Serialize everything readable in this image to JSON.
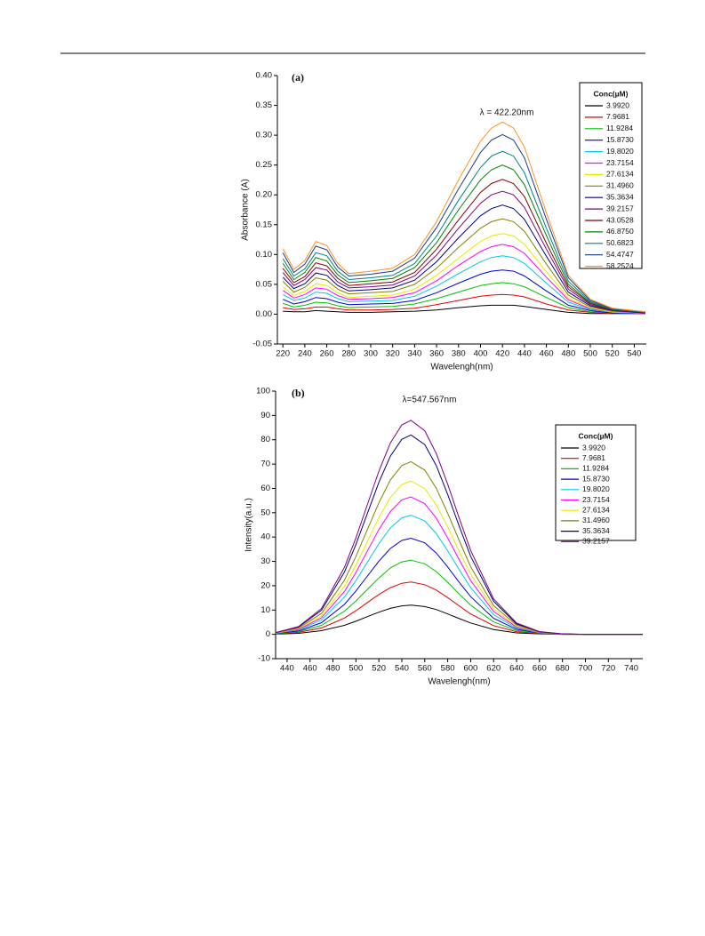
{
  "chart_data": [
    {
      "type": "line",
      "panel_label": "(a)",
      "annotation": "λ = 422.20nm",
      "xlabel": "Wavelengh(nm)",
      "ylabel": "Absorbance (A)",
      "legend_title": "Conc(µM)",
      "xlim": [
        215,
        551
      ],
      "ylim": [
        -0.05,
        0.4
      ],
      "xticks": [
        220,
        240,
        260,
        280,
        300,
        320,
        340,
        360,
        380,
        400,
        420,
        440,
        460,
        480,
        500,
        520,
        540
      ],
      "yticks": [
        -0.05,
        {
          "value": 0,
          "label": "0.00"
        },
        0.05,
        {
          "value": 0.1,
          "label": "0.10"
        },
        0.15,
        {
          "value": 0.2,
          "label": "0.20"
        },
        0.25,
        {
          "value": 0.3,
          "label": "0.30"
        },
        0.35,
        {
          "value": 0.4,
          "label": "0.40"
        }
      ],
      "x": [
        220,
        230,
        240,
        250,
        260,
        270,
        280,
        300,
        320,
        340,
        360,
        380,
        400,
        410,
        420,
        430,
        440,
        460,
        480,
        500,
        520,
        550
      ],
      "series": [
        {
          "name": "3.9920",
          "color": "#000000",
          "values": [
            0.005,
            0.004,
            0.004,
            0.006,
            0.005,
            0.004,
            0.003,
            0.003,
            0.004,
            0.005,
            0.007,
            0.011,
            0.014,
            0.015,
            0.015,
            0.015,
            0.013,
            0.008,
            0.003,
            0.001,
            0.001,
            0.001
          ]
        },
        {
          "name": "7.9681",
          "color": "#e00000",
          "values": [
            0.011,
            0.008,
            0.009,
            0.012,
            0.012,
            0.009,
            0.007,
            0.007,
            0.008,
            0.01,
            0.016,
            0.023,
            0.03,
            0.032,
            0.033,
            0.032,
            0.029,
            0.017,
            0.007,
            0.003,
            0.001,
            0.001
          ]
        },
        {
          "name": "11.9284",
          "color": "#00c000",
          "values": [
            0.018,
            0.012,
            0.015,
            0.02,
            0.019,
            0.014,
            0.011,
            0.012,
            0.013,
            0.017,
            0.026,
            0.037,
            0.048,
            0.051,
            0.053,
            0.051,
            0.046,
            0.028,
            0.011,
            0.004,
            0.002,
            0.001
          ]
        },
        {
          "name": "15.8730",
          "color": "#0000d0",
          "values": [
            0.025,
            0.017,
            0.021,
            0.028,
            0.026,
            0.02,
            0.016,
            0.017,
            0.018,
            0.023,
            0.036,
            0.052,
            0.067,
            0.072,
            0.074,
            0.072,
            0.064,
            0.039,
            0.015,
            0.006,
            0.002,
            0.001
          ]
        },
        {
          "name": "19.8020",
          "color": "#00c8e8",
          "values": [
            0.033,
            0.023,
            0.027,
            0.037,
            0.035,
            0.026,
            0.021,
            0.022,
            0.023,
            0.03,
            0.047,
            0.068,
            0.088,
            0.095,
            0.098,
            0.095,
            0.085,
            0.052,
            0.02,
            0.008,
            0.003,
            0.001
          ]
        },
        {
          "name": "23.7154",
          "color": "#ff00ff",
          "values": [
            0.04,
            0.027,
            0.033,
            0.044,
            0.042,
            0.031,
            0.025,
            0.026,
            0.028,
            0.036,
            0.056,
            0.082,
            0.105,
            0.113,
            0.117,
            0.113,
            0.102,
            0.062,
            0.024,
            0.009,
            0.004,
            0.001
          ]
        },
        {
          "name": "27.6134",
          "color": "#e8e800",
          "values": [
            0.046,
            0.031,
            0.038,
            0.051,
            0.048,
            0.036,
            0.028,
            0.03,
            0.032,
            0.042,
            0.065,
            0.094,
            0.122,
            0.131,
            0.135,
            0.131,
            0.117,
            0.071,
            0.027,
            0.01,
            0.004,
            0.002
          ]
        },
        {
          "name": "31.4960",
          "color": "#808000",
          "values": [
            0.055,
            0.037,
            0.045,
            0.061,
            0.057,
            0.042,
            0.034,
            0.036,
            0.038,
            0.05,
            0.077,
            0.112,
            0.144,
            0.155,
            0.16,
            0.155,
            0.139,
            0.084,
            0.032,
            0.012,
            0.005,
            0.002
          ]
        },
        {
          "name": "35.3634",
          "color": "#000080",
          "values": [
            0.062,
            0.043,
            0.051,
            0.069,
            0.065,
            0.048,
            0.039,
            0.041,
            0.044,
            0.057,
            0.088,
            0.128,
            0.165,
            0.177,
            0.183,
            0.177,
            0.159,
            0.097,
            0.037,
            0.014,
            0.006,
            0.002
          ]
        },
        {
          "name": "39.2157",
          "color": "#800080",
          "values": [
            0.07,
            0.048,
            0.058,
            0.078,
            0.074,
            0.054,
            0.044,
            0.046,
            0.049,
            0.064,
            0.099,
            0.144,
            0.186,
            0.2,
            0.206,
            0.2,
            0.179,
            0.109,
            0.042,
            0.016,
            0.006,
            0.003
          ]
        },
        {
          "name": "43.0528",
          "color": "#800000",
          "values": [
            0.077,
            0.053,
            0.063,
            0.086,
            0.081,
            0.06,
            0.048,
            0.051,
            0.054,
            0.07,
            0.109,
            0.158,
            0.204,
            0.219,
            0.226,
            0.219,
            0.197,
            0.119,
            0.046,
            0.018,
            0.007,
            0.003
          ]
        },
        {
          "name": "46.8750",
          "color": "#008000",
          "values": [
            0.085,
            0.058,
            0.07,
            0.095,
            0.089,
            0.066,
            0.053,
            0.056,
            0.06,
            0.078,
            0.12,
            0.175,
            0.225,
            0.242,
            0.25,
            0.242,
            0.217,
            0.132,
            0.05,
            0.019,
            0.008,
            0.003
          ]
        },
        {
          "name": "50.6823",
          "color": "#008080",
          "values": [
            0.093,
            0.064,
            0.076,
            0.103,
            0.098,
            0.072,
            0.058,
            0.061,
            0.065,
            0.085,
            0.131,
            0.191,
            0.246,
            0.265,
            0.273,
            0.265,
            0.237,
            0.144,
            0.055,
            0.021,
            0.008,
            0.003
          ]
        },
        {
          "name": "54.4747",
          "color": "#1a3a8a",
          "values": [
            0.103,
            0.07,
            0.084,
            0.114,
            0.108,
            0.079,
            0.064,
            0.067,
            0.072,
            0.094,
            0.145,
            0.21,
            0.271,
            0.292,
            0.301,
            0.292,
            0.262,
            0.159,
            0.061,
            0.023,
            0.009,
            0.004
          ]
        },
        {
          "name": "58.2524",
          "color": "#ff9020",
          "values": [
            0.11,
            0.075,
            0.09,
            0.122,
            0.115,
            0.085,
            0.068,
            0.072,
            0.077,
            0.1,
            0.155,
            0.225,
            0.29,
            0.312,
            0.322,
            0.312,
            0.28,
            0.17,
            0.065,
            0.025,
            0.01,
            0.004
          ]
        }
      ]
    },
    {
      "type": "line",
      "panel_label": "(b)",
      "annotation": "λ=547.567nm",
      "xlabel": "Wavelengh(nm)",
      "ylabel": "Intensity(a.u.)",
      "legend_title": "Conc(µM)",
      "xlim": [
        430,
        750
      ],
      "ylim": [
        -10,
        100
      ],
      "xticks": [
        440,
        460,
        480,
        500,
        520,
        540,
        560,
        580,
        600,
        620,
        640,
        660,
        680,
        700,
        720,
        740
      ],
      "yticks": [
        -10,
        0,
        10,
        20,
        30,
        40,
        50,
        60,
        70,
        80,
        90,
        100
      ],
      "x": [
        430,
        450,
        470,
        490,
        500,
        510,
        520,
        530,
        540,
        548,
        560,
        570,
        580,
        590,
        600,
        620,
        640,
        660,
        680,
        700,
        750
      ],
      "series": [
        {
          "name": "3.9920",
          "color": "#000000",
          "values": [
            0.1,
            0.4,
            1.5,
            3.7,
            5.4,
            7.3,
            9.1,
            10.7,
            11.7,
            12,
            11.4,
            10.2,
            8.4,
            6.5,
            4.7,
            2.0,
            0.6,
            0.2,
            0,
            0,
            0
          ]
        },
        {
          "name": "7.9681",
          "color": "#e00000",
          "values": [
            0.2,
            0.8,
            2.6,
            6.7,
            9.7,
            13.1,
            16.4,
            19.2,
            21.0,
            21.5,
            20.4,
            18.2,
            15.1,
            11.7,
            8.4,
            3.6,
            1.1,
            0.3,
            0,
            0,
            0
          ]
        },
        {
          "name": "11.9284",
          "color": "#00c000",
          "values": [
            0.2,
            1.1,
            3.7,
            9.5,
            13.7,
            18.5,
            23.2,
            27.3,
            29.8,
            30.5,
            29.0,
            25.8,
            21.4,
            16.6,
            12.0,
            5.1,
            1.6,
            0.4,
            0.1,
            0,
            0
          ]
        },
        {
          "name": "15.8730",
          "color": "#0000d0",
          "values": [
            0.3,
            1.4,
            4.8,
            12.3,
            17.8,
            24.0,
            30.1,
            35.3,
            38.6,
            39.5,
            37.6,
            33.4,
            27.7,
            21.4,
            15.5,
            6.6,
            2.1,
            0.5,
            0.1,
            0,
            0
          ]
        },
        {
          "name": "19.8020",
          "color": "#00c8e8",
          "values": [
            0.4,
            1.8,
            5.9,
            15.3,
            22.1,
            29.7,
            37.3,
            43.8,
            47.9,
            49,
            46.6,
            41.5,
            34.3,
            26.6,
            19.2,
            8.1,
            2.6,
            0.6,
            0.1,
            0,
            0
          ]
        },
        {
          "name": "23.7154",
          "color": "#ff00ff",
          "values": [
            0.5,
            2.0,
            6.8,
            17.6,
            25.4,
            34.3,
            43.1,
            50.5,
            55.3,
            56.5,
            53.7,
            47.8,
            39.6,
            30.7,
            22.1,
            9.4,
            3.0,
            0.7,
            0.1,
            0,
            0
          ]
        },
        {
          "name": "27.6134",
          "color": "#e8e800",
          "values": [
            0.5,
            2.3,
            7.6,
            19.7,
            28.4,
            38.2,
            48.0,
            56.3,
            61.6,
            63,
            59.9,
            53.3,
            44.2,
            34.2,
            24.7,
            10.5,
            3.3,
            0.8,
            0.1,
            0,
            0
          ]
        },
        {
          "name": "31.4960",
          "color": "#808000",
          "values": [
            0.6,
            2.6,
            8.6,
            22.2,
            32.0,
            43.1,
            54.1,
            63.5,
            69.4,
            71,
            67.5,
            60.1,
            49.8,
            38.6,
            27.8,
            11.8,
            3.8,
            0.9,
            0.1,
            0,
            0
          ]
        },
        {
          "name": "35.3634",
          "color": "#000080",
          "values": [
            0.7,
            3.0,
            9.9,
            25.6,
            36.9,
            49.8,
            62.5,
            73.3,
            80.2,
            82,
            78.0,
            69.4,
            57.5,
            44.5,
            32.1,
            13.6,
            4.3,
            1.1,
            0.2,
            0,
            0
          ]
        },
        {
          "name": "39.2157",
          "color": "#800080",
          "values": [
            0.7,
            3.2,
            10.6,
            27.5,
            39.6,
            53.4,
            67.1,
            78.7,
            86.1,
            88,
            83.7,
            74.4,
            61.7,
            47.8,
            34.5,
            14.6,
            4.7,
            1.1,
            0.2,
            0,
            0
          ]
        }
      ]
    }
  ]
}
